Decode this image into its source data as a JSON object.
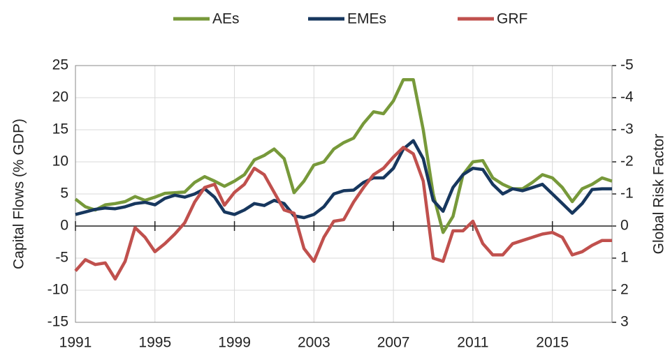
{
  "chart_data": {
    "type": "line",
    "x": [
      1991,
      1991.5,
      1992,
      1992.5,
      1993,
      1993.5,
      1994,
      1994.5,
      1995,
      1995.5,
      1996,
      1996.5,
      1997,
      1997.5,
      1998,
      1998.5,
      1999,
      1999.5,
      2000,
      2000.5,
      2001,
      2001.5,
      2002,
      2002.5,
      2003,
      2003.5,
      2004,
      2004.5,
      2005,
      2005.5,
      2006,
      2006.5,
      2007,
      2007.5,
      2008,
      2008.5,
      2009,
      2009.5,
      2010,
      2010.5,
      2011,
      2011.5,
      2012,
      2012.5,
      2013,
      2013.5,
      2014,
      2014.5,
      2015,
      2015.5,
      2016,
      2016.5,
      2017,
      2017.5,
      2018
    ],
    "series": [
      {
        "name": "AEs",
        "color": "#77993a",
        "values": [
          4.2,
          3.0,
          2.5,
          3.3,
          3.5,
          3.8,
          4.6,
          4.0,
          4.5,
          5.1,
          5.2,
          5.3,
          6.8,
          7.7,
          7.0,
          6.2,
          7.0,
          8.0,
          10.3,
          11.0,
          12.0,
          10.5,
          5.2,
          7.0,
          9.5,
          10.0,
          12.0,
          13.0,
          13.7,
          16.0,
          17.8,
          17.5,
          19.5,
          22.8,
          22.8,
          15.0,
          5.0,
          -1.0,
          1.5,
          8.0,
          10.0,
          10.2,
          7.5,
          6.5,
          5.8,
          5.8,
          6.8,
          8.0,
          7.5,
          6.0,
          3.8,
          5.8,
          6.5,
          7.5,
          7.0
        ]
      },
      {
        "name": "EMEs",
        "color": "#17375e",
        "values": [
          1.8,
          2.2,
          2.6,
          2.8,
          2.7,
          3.0,
          3.5,
          3.7,
          3.3,
          4.3,
          4.8,
          4.5,
          5.0,
          5.8,
          4.5,
          2.2,
          1.8,
          2.5,
          3.5,
          3.2,
          4.0,
          3.5,
          1.6,
          1.3,
          1.8,
          3.0,
          5.0,
          5.5,
          5.6,
          6.8,
          7.5,
          7.5,
          9.0,
          12.0,
          13.3,
          10.5,
          4.0,
          2.3,
          6.0,
          8.0,
          9.0,
          8.8,
          6.5,
          5.0,
          5.8,
          5.5,
          6.0,
          6.5,
          5.0,
          3.5,
          2.0,
          3.5,
          5.7,
          5.8,
          5.8
        ]
      },
      {
        "name": "GRF",
        "color": "#c0504d",
        "axis": "y2",
        "values": [
          1.4,
          1.05,
          1.2,
          1.15,
          1.65,
          1.1,
          0.05,
          0.35,
          0.8,
          0.55,
          0.25,
          -0.1,
          -0.75,
          -1.2,
          -1.3,
          -0.65,
          -1.05,
          -1.3,
          -1.8,
          -1.6,
          -1.05,
          -0.5,
          -0.4,
          0.7,
          1.1,
          0.35,
          -0.15,
          -0.2,
          -0.75,
          -1.2,
          -1.6,
          -1.8,
          -2.15,
          -2.45,
          -2.25,
          -1.4,
          1.0,
          1.1,
          0.15,
          0.15,
          -0.15,
          0.55,
          0.9,
          0.9,
          0.55,
          0.45,
          0.35,
          0.25,
          0.2,
          0.35,
          0.9,
          0.8,
          0.6,
          0.45,
          0.45
        ]
      }
    ],
    "xlim": [
      1991,
      2018
    ],
    "xticks": [
      1991,
      1995,
      1999,
      2003,
      2007,
      2011,
      2015
    ],
    "ylim": [
      -15,
      25
    ],
    "yticks": [
      -15,
      -10,
      -5,
      0,
      5,
      10,
      15,
      20,
      25
    ],
    "y2lim": [
      3,
      -5
    ],
    "y2ticks": [
      3,
      2,
      1,
      0,
      -1,
      -2,
      -3,
      -4,
      -5
    ],
    "ylabel": "Capital Flows (% GDP)",
    "y2label": "Global Risk Factor",
    "grid": true,
    "legend": "top"
  }
}
